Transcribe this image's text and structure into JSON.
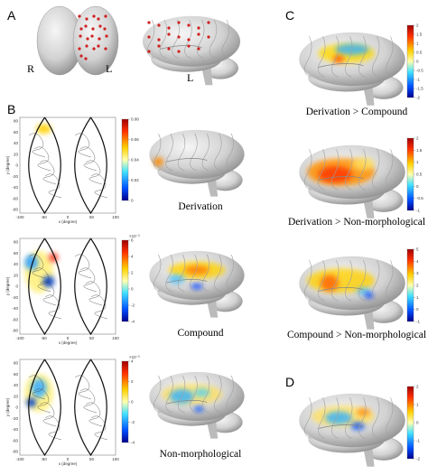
{
  "panel_labels": {
    "a": "A",
    "b": "B",
    "c": "C",
    "d": "D"
  },
  "panel_a": {
    "front_labels": [
      "R",
      "L"
    ],
    "side_label": "L"
  },
  "panel_b": {
    "x_label": "x (degree)",
    "y_label": "y (degree)",
    "x_ticks": [
      "-100",
      "-50",
      "0",
      "50",
      "100"
    ],
    "y_ticks": [
      "80",
      "60",
      "40",
      "20",
      "0",
      "-20",
      "-40",
      "-60",
      "-80"
    ],
    "rows": [
      {
        "caption": "Derivation",
        "colorbar_ticks": [
          "0.08",
          "0.06",
          "0.04",
          "0.02",
          "0"
        ]
      },
      {
        "caption": "Compound",
        "scale_label": "×10⁻³",
        "colorbar_ticks": [
          "6",
          "4",
          "2",
          "0",
          "-2",
          "-4"
        ]
      },
      {
        "caption": "Non-morphological",
        "scale_label": "×10⁻³",
        "colorbar_ticks": [
          "4",
          "2",
          "0",
          "-2",
          "-4"
        ]
      }
    ]
  },
  "panel_c": {
    "rows": [
      {
        "caption": "Derivation > Compound",
        "colorbar_ticks": [
          "2",
          "1.5",
          "1",
          "0.5",
          "0",
          "-0.5",
          "-1",
          "-1.5",
          "-2"
        ]
      },
      {
        "caption": "Derivation > Non-morphological",
        "colorbar_ticks": [
          "2",
          "1.5",
          "1",
          "0.5",
          "0",
          "-0.5",
          "-1"
        ]
      },
      {
        "caption": "Compound > Non-morphological",
        "colorbar_ticks": [
          "5",
          "4",
          "3",
          "2",
          "1",
          "0",
          "-1"
        ]
      }
    ]
  },
  "panel_d": {
    "colorbar_ticks": [
      "2",
      "1",
      "0",
      "-1",
      "-2"
    ]
  }
}
